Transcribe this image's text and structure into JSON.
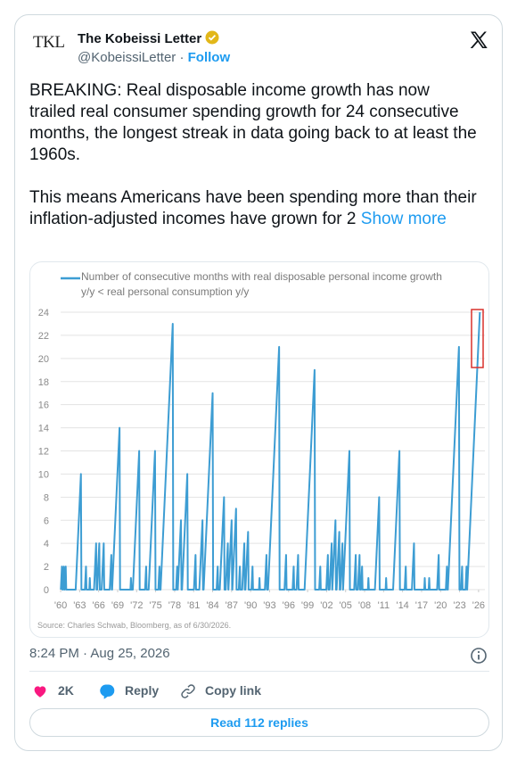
{
  "tweet": {
    "avatar_text": "TKL",
    "author": "The Kobeissi Letter",
    "handle": "@KobeissiLetter",
    "separator": "·",
    "follow": "Follow",
    "paragraphs": [
      "BREAKING: Real disposable income growth has now trailed real consumer spending growth for 24 consecutive months, the longest streak in data going back to at least the 1960s.",
      "This means Americans have been spending more than their inflation-adjusted incomes have grown for 2"
    ],
    "show_more": "Show more",
    "timestamp": "8:24 PM · Aug 25, 2026",
    "likes": "2K",
    "reply": "Reply",
    "copy_link": "Copy link",
    "read_replies": "Read 112 replies"
  },
  "chart_data": {
    "type": "line",
    "x": [
      1960.03,
      1960.2,
      1960.28,
      1960.33,
      1960.5,
      1960.58,
      1960.63,
      1960.8,
      1960.88,
      1962.37,
      1963.2,
      1963.28,
      1963.83,
      1964.0,
      1964.08,
      1964.52,
      1964.6,
      1964.68,
      1965.27,
      1965.6,
      1965.68,
      1965.77,
      1966.1,
      1966.18,
      1966.47,
      1966.8,
      1966.88,
      1967.75,
      1968.0,
      1968.08,
      1968.13,
      1969.3,
      1969.38,
      1971.02,
      1971.1,
      1971.18,
      1971.4,
      1972.4,
      1972.48,
      1973.33,
      1973.5,
      1973.58,
      1973.9,
      1974.9,
      1974.98,
      1975.43,
      1975.6,
      1975.68,
      1975.78,
      1977.7,
      1977.78,
      1978.23,
      1978.4,
      1978.48,
      1978.5,
      1979.0,
      1979.08,
      1979.17,
      1980.0,
      1980.08,
      1981.05,
      1981.3,
      1981.38,
      1981.9,
      1982.4,
      1982.48,
      1982.58,
      1984.0,
      1984.08,
      1984.63,
      1984.8,
      1984.88,
      1985.13,
      1985.8,
      1985.88,
      1986.07,
      1986.4,
      1986.48,
      1986.5,
      1987.0,
      1987.08,
      1987.12,
      1987.7,
      1987.78,
      1988.13,
      1988.3,
      1988.38,
      1988.67,
      1989.0,
      1989.08,
      1989.18,
      1989.6,
      1989.68,
      1990.13,
      1990.3,
      1990.38,
      1991.32,
      1991.4,
      1991.48,
      1992.25,
      1992.5,
      1992.58,
      1992.75,
      1994.5,
      1994.58,
      1995.35,
      1995.6,
      1995.68,
      1996.63,
      1996.8,
      1996.88,
      1997.25,
      1997.5,
      1997.58,
      1998.52,
      2000.1,
      2000.18,
      2000.83,
      2001.0,
      2001.08,
      2001.95,
      2002.2,
      2002.28,
      2002.47,
      2002.8,
      2002.88,
      2002.9,
      2003.4,
      2003.48,
      2003.58,
      2004.0,
      2004.08,
      2004.17,
      2004.5,
      2004.58,
      2004.6,
      2005.6,
      2005.68,
      2006.35,
      2006.6,
      2006.68,
      2006.95,
      2007.2,
      2007.28,
      2007.43,
      2007.6,
      2007.68,
      2008.52,
      2008.6,
      2008.68,
      2009.63,
      2010.3,
      2010.38,
      2011.32,
      2011.4,
      2011.48,
      2012.5,
      2013.5,
      2013.58,
      2014.33,
      2014.5,
      2014.58,
      2015.47,
      2015.8,
      2015.88,
      2017.42,
      2017.5,
      2017.58,
      2018.12,
      2018.2,
      2018.28,
      2019.45,
      2019.7,
      2019.78,
      2020.83,
      2021.0,
      2021.08,
      2021.15,
      2022.9,
      2022.98,
      2023.23,
      2023.4,
      2023.48,
      2023.93,
      2024.1,
      2024.18,
      2024.2,
      2026.2
    ],
    "series": [
      {
        "name": "Number of consecutive months with real disposable personal income growth y/y < real personal consumption y/y",
        "color": "#3d9dd3",
        "values": [
          0,
          2,
          0,
          0,
          2,
          0,
          0,
          2,
          0,
          0,
          10,
          0,
          0,
          2,
          0,
          0,
          1,
          0,
          0,
          4,
          0,
          0,
          4,
          0,
          0,
          4,
          0,
          0,
          3,
          0,
          0,
          14,
          0,
          0,
          1,
          0,
          0,
          12,
          0,
          0,
          2,
          0,
          0,
          12,
          0,
          0,
          2,
          0,
          0,
          23,
          0,
          0,
          2,
          0,
          0,
          6,
          0,
          0,
          10,
          0,
          0,
          3,
          0,
          0,
          6,
          0,
          0,
          17,
          0,
          0,
          2,
          0,
          0,
          8,
          0,
          0,
          4,
          0,
          0,
          6,
          0,
          0,
          7,
          0,
          0,
          2,
          0,
          0,
          4,
          0,
          0,
          5,
          0,
          0,
          2,
          0,
          0,
          1,
          0,
          0,
          3,
          0,
          0,
          21,
          0,
          0,
          3,
          0,
          0,
          2,
          0,
          0,
          3,
          0,
          0,
          19,
          0,
          0,
          2,
          0,
          0,
          3,
          0,
          0,
          4,
          0,
          0,
          6,
          0,
          0,
          5,
          0,
          0,
          4,
          0,
          0,
          12,
          0,
          0,
          3,
          0,
          0,
          3,
          0,
          0,
          2,
          0,
          0,
          1,
          0,
          0,
          8,
          0,
          0,
          1,
          0,
          0,
          12,
          0,
          0,
          2,
          0,
          0,
          4,
          0,
          0,
          1,
          0,
          0,
          1,
          0,
          0,
          3,
          0,
          0,
          2,
          0,
          0,
          21,
          0,
          0,
          2,
          0,
          0,
          2,
          0,
          0,
          24
        ]
      }
    ],
    "xlim": [
      1959.5,
      2027
    ],
    "ylim": [
      0,
      24
    ],
    "xticks": [
      {
        "value": 1960,
        "label": "'60"
      },
      {
        "value": 1963,
        "label": "'63"
      },
      {
        "value": 1966,
        "label": "'66"
      },
      {
        "value": 1969,
        "label": "'69"
      },
      {
        "value": 1972,
        "label": "'72"
      },
      {
        "value": 1975,
        "label": "'75"
      },
      {
        "value": 1978,
        "label": "'78"
      },
      {
        "value": 1981,
        "label": "'81"
      },
      {
        "value": 1984,
        "label": "'84"
      },
      {
        "value": 1987,
        "label": "'87"
      },
      {
        "value": 1990,
        "label": "'90"
      },
      {
        "value": 1993,
        "label": "'93"
      },
      {
        "value": 1996,
        "label": "'96"
      },
      {
        "value": 1999,
        "label": "'99"
      },
      {
        "value": 2002,
        "label": "'02"
      },
      {
        "value": 2005,
        "label": "'05"
      },
      {
        "value": 2008,
        "label": "'08"
      },
      {
        "value": 2011,
        "label": "'11"
      },
      {
        "value": 2014,
        "label": "'14"
      },
      {
        "value": 2017,
        "label": "'17"
      },
      {
        "value": 2020,
        "label": "'20"
      },
      {
        "value": 2023,
        "label": "'23"
      },
      {
        "value": 2026,
        "label": "'26"
      }
    ],
    "yticks": [
      0,
      2,
      4,
      6,
      8,
      10,
      12,
      14,
      16,
      18,
      20,
      22,
      24
    ],
    "grid": true,
    "source": "Source: Charles Schwab, Bloomberg, as of 6/30/2026."
  }
}
